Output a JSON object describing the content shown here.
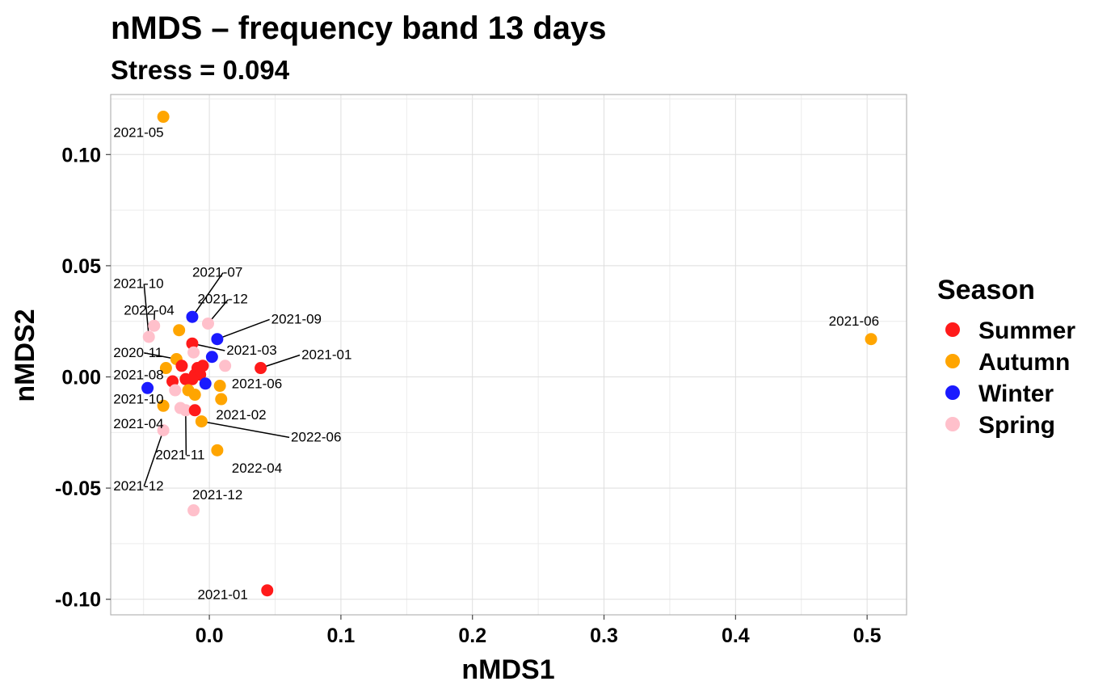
{
  "chart_data": {
    "type": "scatter",
    "title": "nMDS – frequency band 13 days",
    "subtitle": "Stress = 0.094",
    "xlabel": "nMDS1",
    "ylabel": "nMDS2",
    "xlim": [
      -0.075,
      0.53
    ],
    "ylim": [
      -0.107,
      0.127
    ],
    "x_ticks": [
      0.0,
      0.1,
      0.2,
      0.3,
      0.4,
      0.5
    ],
    "x_tick_labels": [
      "0.0",
      "0.1",
      "0.2",
      "0.3",
      "0.4",
      "0.5"
    ],
    "y_ticks": [
      -0.1,
      -0.05,
      0.0,
      0.05,
      0.1
    ],
    "y_tick_labels": [
      "-0.10",
      "-0.05",
      "0.00",
      "0.05",
      "0.10"
    ],
    "grid": true,
    "legend": {
      "title": "Season",
      "placement": "right",
      "entries": [
        {
          "name": "Summer",
          "color": "#ff1a1a"
        },
        {
          "name": "Autumn",
          "color": "#ffa500"
        },
        {
          "name": "Winter",
          "color": "#1a1aff"
        },
        {
          "name": "Spring",
          "color": "#ffc0cb"
        }
      ]
    },
    "points": [
      {
        "x": -0.035,
        "y": 0.117,
        "season": "Autumn",
        "label": "2021-05"
      },
      {
        "x": 0.503,
        "y": 0.017,
        "season": "Autumn",
        "label": "2021-06"
      },
      {
        "x": 0.044,
        "y": -0.096,
        "season": "Summer",
        "label": "2021-01"
      },
      {
        "x": -0.012,
        "y": -0.06,
        "season": "Spring",
        "label": "2021-12"
      },
      {
        "x": 0.039,
        "y": 0.004,
        "season": "Summer",
        "label": "2021-01"
      },
      {
        "x": 0.006,
        "y": 0.017,
        "season": "Winter",
        "label": "2021-09"
      },
      {
        "x": -0.013,
        "y": 0.027,
        "season": "Winter",
        "label": "2021-07"
      },
      {
        "x": -0.001,
        "y": 0.024,
        "season": "Spring",
        "label": "2021-12"
      },
      {
        "x": -0.046,
        "y": 0.018,
        "season": "Spring",
        "label": "2021-10"
      },
      {
        "x": -0.042,
        "y": 0.023,
        "season": "Spring",
        "label": "2022-04"
      },
      {
        "x": -0.023,
        "y": 0.021,
        "season": "Autumn",
        "label": ""
      },
      {
        "x": -0.013,
        "y": 0.015,
        "season": "Summer",
        "label": "2021-03"
      },
      {
        "x": 0.002,
        "y": 0.009,
        "season": "Winter",
        "label": ""
      },
      {
        "x": -0.012,
        "y": 0.011,
        "season": "Spring",
        "label": ""
      },
      {
        "x": 0.012,
        "y": 0.005,
        "season": "Spring",
        "label": ""
      },
      {
        "x": -0.025,
        "y": 0.008,
        "season": "Autumn",
        "label": "2020-11"
      },
      {
        "x": -0.033,
        "y": 0.004,
        "season": "Autumn",
        "label": ""
      },
      {
        "x": -0.021,
        "y": 0.005,
        "season": "Summer",
        "label": ""
      },
      {
        "x": -0.028,
        "y": -0.002,
        "season": "Summer",
        "label": "2021-08"
      },
      {
        "x": -0.018,
        "y": -0.001,
        "season": "Summer",
        "label": ""
      },
      {
        "x": -0.011,
        "y": 0.001,
        "season": "Summer",
        "label": ""
      },
      {
        "x": -0.009,
        "y": 0.004,
        "season": "Summer",
        "label": ""
      },
      {
        "x": -0.005,
        "y": 0.005,
        "season": "Summer",
        "label": ""
      },
      {
        "x": -0.007,
        "y": 0.001,
        "season": "Summer",
        "label": ""
      },
      {
        "x": -0.013,
        "y": -0.001,
        "season": "Summer",
        "label": ""
      },
      {
        "x": -0.003,
        "y": -0.003,
        "season": "Winter",
        "label": ""
      },
      {
        "x": -0.047,
        "y": -0.005,
        "season": "Winter",
        "label": "2021-10"
      },
      {
        "x": 0.008,
        "y": -0.004,
        "season": "Autumn",
        "label": "2021-06"
      },
      {
        "x": -0.016,
        "y": -0.006,
        "season": "Autumn",
        "label": ""
      },
      {
        "x": -0.011,
        "y": -0.008,
        "season": "Autumn",
        "label": ""
      },
      {
        "x": 0.009,
        "y": -0.01,
        "season": "Autumn",
        "label": ""
      },
      {
        "x": -0.035,
        "y": -0.013,
        "season": "Autumn",
        "label": ""
      },
      {
        "x": -0.022,
        "y": -0.014,
        "season": "Spring",
        "label": ""
      },
      {
        "x": -0.018,
        "y": -0.015,
        "season": "Spring",
        "label": "2021-11"
      },
      {
        "x": -0.011,
        "y": -0.015,
        "season": "Summer",
        "label": "2021-02"
      },
      {
        "x": -0.006,
        "y": -0.02,
        "season": "Autumn",
        "label": "2022-06"
      },
      {
        "x": -0.035,
        "y": -0.024,
        "season": "Spring",
        "label": "2021-12"
      },
      {
        "x": 0.006,
        "y": -0.033,
        "season": "Autumn",
        "label": "2022-04"
      },
      {
        "x": -0.026,
        "y": -0.006,
        "season": "Spring",
        "label": ""
      }
    ],
    "annotations": [
      {
        "text": "2021-05",
        "x": -0.073,
        "y": 0.108,
        "anchor": "start"
      },
      {
        "text": "2021-06",
        "x": 0.49,
        "y": 0.023,
        "anchor": "middle"
      },
      {
        "text": "2021-01",
        "x": -0.009,
        "y": -0.1,
        "anchor": "start"
      },
      {
        "text": "2021-12",
        "x": -0.013,
        "y": -0.055,
        "anchor": "start"
      },
      {
        "text": "2021-01",
        "x": 0.07,
        "y": 0.008,
        "anchor": "start",
        "from": [
          0.039,
          0.004
        ]
      },
      {
        "text": "2021-09",
        "x": 0.047,
        "y": 0.024,
        "anchor": "start",
        "from": [
          0.006,
          0.017
        ]
      },
      {
        "text": "2021-07",
        "x": -0.013,
        "y": 0.045,
        "anchor": "start",
        "from": [
          -0.013,
          0.027
        ]
      },
      {
        "text": "2021-12",
        "x": -0.009,
        "y": 0.033,
        "anchor": "start",
        "from": [
          -0.001,
          0.024
        ]
      },
      {
        "text": "2021-10",
        "x": -0.073,
        "y": 0.04,
        "anchor": "start",
        "from": [
          -0.046,
          0.018
        ]
      },
      {
        "text": "2022-04",
        "x": -0.065,
        "y": 0.028,
        "anchor": "start",
        "from": [
          -0.042,
          0.023
        ]
      },
      {
        "text": "2021-03",
        "x": 0.013,
        "y": 0.01,
        "anchor": "start",
        "from": [
          -0.013,
          0.015
        ]
      },
      {
        "text": "2020-11",
        "x": -0.073,
        "y": 0.009,
        "anchor": "start",
        "from": [
          -0.025,
          0.008
        ]
      },
      {
        "text": "2021-08",
        "x": -0.073,
        "y": -0.001,
        "anchor": "start"
      },
      {
        "text": "2021-10",
        "x": -0.073,
        "y": -0.012,
        "anchor": "start"
      },
      {
        "text": "2021-06",
        "x": 0.017,
        "y": -0.005,
        "anchor": "start"
      },
      {
        "text": "2021-02",
        "x": 0.005,
        "y": -0.019,
        "anchor": "start"
      },
      {
        "text": "2022-06",
        "x": 0.062,
        "y": -0.029,
        "anchor": "start",
        "from": [
          -0.006,
          -0.02
        ]
      },
      {
        "text": "2021-04",
        "x": -0.073,
        "y": -0.023,
        "anchor": "start"
      },
      {
        "text": "2021-11",
        "x": -0.041,
        "y": -0.037,
        "anchor": "start",
        "from": [
          -0.018,
          -0.015
        ]
      },
      {
        "text": "2021-12",
        "x": -0.073,
        "y": -0.051,
        "anchor": "start",
        "from": [
          -0.035,
          -0.024
        ]
      },
      {
        "text": "2022-04",
        "x": 0.017,
        "y": -0.043,
        "anchor": "start"
      }
    ]
  }
}
